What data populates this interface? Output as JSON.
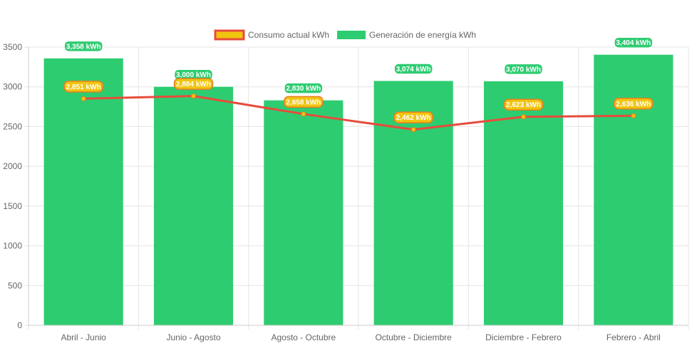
{
  "chart_data": {
    "type": "bar",
    "categories": [
      "Abril - Junio",
      "Junio - Agosto",
      "Agosto - Octubre",
      "Octubre - Diciembre",
      "Diciembre - Febrero",
      "Febrero - Abril"
    ],
    "series": [
      {
        "name": "Generación de energía kWh",
        "type": "bar",
        "color": "#2ecc71",
        "values": [
          3358,
          3000,
          2830,
          3074,
          3070,
          3404
        ],
        "labels": [
          "3,358 kWh",
          "3,000 kWh",
          "2,830 kWh",
          "3,074 kWh",
          "3,070 kWh",
          "3,404 kWh"
        ]
      },
      {
        "name": "Consumo actual kWh",
        "type": "line",
        "color": "#e74c3c",
        "point_color": "#f1c40f",
        "values": [
          2851,
          2884,
          2658,
          2462,
          2623,
          2636
        ],
        "labels": [
          "2,851 kWh",
          "2,884 kWh",
          "2,658 kWh",
          "2,462 kWh",
          "2,623 kWh",
          "2,636 kWh"
        ]
      }
    ],
    "yticks": [
      "0",
      "500",
      "1000",
      "1500",
      "2000",
      "2500",
      "3000",
      "3500"
    ],
    "ylim": [
      0,
      3500
    ],
    "legend_position": "top-center",
    "grid": true
  }
}
